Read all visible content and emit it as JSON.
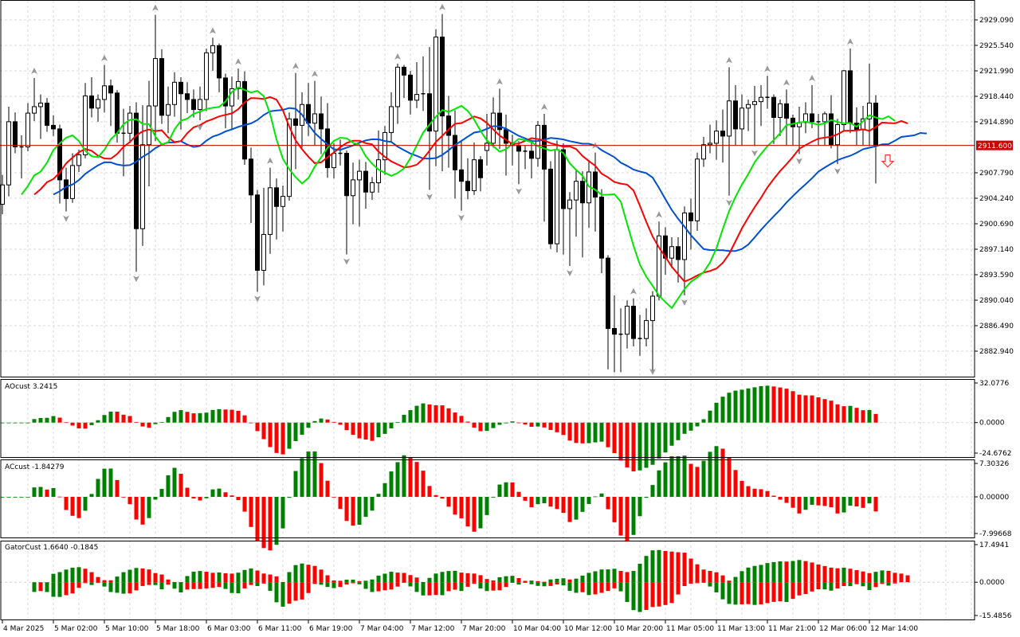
{
  "colors": {
    "background": "#ffffff",
    "grid": "#d9d9d9",
    "bull_body": "#ffffff",
    "bear_body": "#000000",
    "jaw": "#0050d0",
    "teeth": "#ff0000",
    "lips": "#00e600",
    "hist_up": "#008000",
    "hist_down": "#ff0000",
    "price_line": "#cc0000",
    "fractal": "#9a9a9a",
    "sell_arrow": "#ff3030"
  },
  "main": {
    "current_price": 2911.6,
    "current_price_label": "2911.600",
    "price_ticks": [
      "2929.090",
      "2925.540",
      "2921.990",
      "2918.440",
      "2914.890",
      "2907.790",
      "2904.240",
      "2900.690",
      "2897.140",
      "2893.590",
      "2890.040",
      "2886.490",
      "2882.940"
    ],
    "ylim": [
      2879.39,
      2931.86
    ],
    "alligator": {
      "jaw": {
        "period": 13,
        "shift": 8
      },
      "teeth": {
        "period": 8,
        "shift": 5
      },
      "lips": {
        "period": 5,
        "shift": 3
      }
    },
    "sell_signal_icon": "down-arrow-outline"
  },
  "time_axis": {
    "labels": [
      "4 Mar 2025",
      "5 Mar 02:00",
      "5 Mar 10:00",
      "5 Mar 18:00",
      "6 Mar 03:00",
      "6 Mar 11:00",
      "6 Mar 19:00",
      "7 Mar 04:00",
      "7 Mar 12:00",
      "7 Mar 20:00",
      "10 Mar 04:00",
      "10 Mar 12:00",
      "10 Mar 20:00",
      "11 Mar 05:00",
      "11 Mar 13:00",
      "11 Mar 21:00",
      "12 Mar 06:00",
      "12 Mar 14:00"
    ],
    "label_every_bars": 8
  },
  "ao": {
    "title": "AOcust 3.2415",
    "ticks": [
      "32.0776",
      "0.0000",
      "-24.6762"
    ],
    "ylim": [
      -24.6762,
      32.0776
    ]
  },
  "ac": {
    "title": "ACcust -1.84279",
    "ticks": [
      "7.30326",
      "0.00000",
      "-7.99668"
    ],
    "ylim": [
      -7.99668,
      7.30326
    ]
  },
  "gator": {
    "title": "GatorCust 1.6640 -0.1845",
    "ticks": [
      "17.4941",
      "0.0000",
      "-15.4856"
    ],
    "ylim": [
      -15.4856,
      17.4941
    ]
  },
  "chart_data": {
    "type": "candlestick",
    "timeframe_bars": "H1",
    "ohlc": [
      [
        2903.4,
        2907.5,
        2902.0,
        2906.1
      ],
      [
        2906.1,
        2917.0,
        2904.5,
        2914.9
      ],
      [
        2914.9,
        2916.2,
        2910.5,
        2911.4
      ],
      [
        2911.4,
        2913.0,
        2907.0,
        2911.4
      ],
      [
        2911.4,
        2917.5,
        2910.8,
        2916.1
      ],
      [
        2916.1,
        2921.0,
        2915.0,
        2917.0
      ],
      [
        2917.0,
        2918.7,
        2912.5,
        2917.5
      ],
      [
        2917.5,
        2918.2,
        2913.5,
        2914.4
      ],
      [
        2914.4,
        2915.8,
        2912.9,
        2913.9
      ],
      [
        2913.9,
        2914.5,
        2903.5,
        2906.8
      ],
      [
        2906.8,
        2908.5,
        2902.4,
        2904.2
      ],
      [
        2904.2,
        2910.5,
        2903.6,
        2908.8
      ],
      [
        2908.8,
        2911.0,
        2907.9,
        2910.3
      ],
      [
        2910.3,
        2920.3,
        2909.8,
        2918.5
      ],
      [
        2918.5,
        2921.1,
        2915.5,
        2916.8
      ],
      [
        2916.8,
        2918.7,
        2914.9,
        2918.0
      ],
      [
        2918.0,
        2922.8,
        2916.2,
        2919.9
      ],
      [
        2919.9,
        2920.8,
        2914.3,
        2918.9
      ],
      [
        2918.9,
        2919.3,
        2912.0,
        2913.3
      ],
      [
        2913.3,
        2916.7,
        2907.3,
        2913.3
      ],
      [
        2913.3,
        2917.1,
        2911.9,
        2916.1
      ],
      [
        2916.1,
        2917.6,
        2894.0,
        2900.0
      ],
      [
        2900.0,
        2917.2,
        2897.6,
        2911.7
      ],
      [
        2911.7,
        2920.6,
        2905.9,
        2917.1
      ],
      [
        2917.1,
        2929.8,
        2912.2,
        2923.7
      ],
      [
        2923.7,
        2925.0,
        2914.6,
        2915.8
      ],
      [
        2915.8,
        2919.8,
        2913.3,
        2917.3
      ],
      [
        2917.3,
        2921.8,
        2915.6,
        2920.4
      ],
      [
        2920.4,
        2921.1,
        2913.8,
        2918.8
      ],
      [
        2918.8,
        2920.4,
        2916.1,
        2918.0
      ],
      [
        2918.0,
        2919.4,
        2915.5,
        2916.6
      ],
      [
        2916.6,
        2919.8,
        2915.1,
        2918.0
      ],
      [
        2918.0,
        2925.1,
        2916.4,
        2924.5
      ],
      [
        2924.5,
        2926.6,
        2922.0,
        2925.5
      ],
      [
        2925.5,
        2925.8,
        2919.0,
        2921.0
      ],
      [
        2921.0,
        2921.6,
        2914.0,
        2917.1
      ],
      [
        2917.1,
        2921.2,
        2913.9,
        2919.5
      ],
      [
        2919.5,
        2922.3,
        2918.0,
        2920.5
      ],
      [
        2920.5,
        2921.9,
        2908.9,
        2909.7
      ],
      [
        2909.7,
        2911.3,
        2900.8,
        2904.7
      ],
      [
        2904.7,
        2905.4,
        2891.2,
        2894.2
      ],
      [
        2894.2,
        2905.7,
        2892.1,
        2899.2
      ],
      [
        2899.2,
        2908.5,
        2896.5,
        2905.7
      ],
      [
        2905.7,
        2907.0,
        2898.5,
        2903.1
      ],
      [
        2903.1,
        2906.0,
        2899.6,
        2904.5
      ],
      [
        2904.5,
        2916.2,
        2903.9,
        2915.3
      ],
      [
        2915.3,
        2921.7,
        2908.3,
        2914.4
      ],
      [
        2914.4,
        2919.0,
        2911.3,
        2917.3
      ],
      [
        2917.3,
        2920.3,
        2912.9,
        2914.7
      ],
      [
        2914.7,
        2920.6,
        2911.6,
        2916.0
      ],
      [
        2916.0,
        2918.4,
        2910.4,
        2913.9
      ],
      [
        2913.9,
        2917.5,
        2907.1,
        2908.5
      ],
      [
        2908.5,
        2911.9,
        2907.0,
        2910.5
      ],
      [
        2910.5,
        2912.4,
        2908.8,
        2910.5
      ],
      [
        2910.5,
        2910.9,
        2896.4,
        2904.6
      ],
      [
        2904.6,
        2909.2,
        2900.6,
        2906.8
      ],
      [
        2906.8,
        2909.6,
        2900.3,
        2908.0
      ],
      [
        2908.0,
        2909.3,
        2902.8,
        2905.1
      ],
      [
        2905.1,
        2907.2,
        2904.0,
        2906.4
      ],
      [
        2906.4,
        2913.7,
        2905.0,
        2909.6
      ],
      [
        2909.6,
        2914.3,
        2907.5,
        2913.4
      ],
      [
        2913.4,
        2919.0,
        2912.0,
        2917.0
      ],
      [
        2917.0,
        2923.0,
        2914.6,
        2922.5
      ],
      [
        2922.5,
        2922.8,
        2918.2,
        2921.4
      ],
      [
        2921.4,
        2922.0,
        2915.9,
        2917.9
      ],
      [
        2917.9,
        2923.2,
        2916.8,
        2918.7
      ],
      [
        2918.7,
        2924.0,
        2916.4,
        2918.8
      ],
      [
        2918.8,
        2925.3,
        2905.4,
        2913.6
      ],
      [
        2913.6,
        2927.8,
        2908.7,
        2926.7
      ],
      [
        2926.7,
        2929.9,
        2908.0,
        2915.7
      ],
      [
        2915.7,
        2918.5,
        2908.5,
        2913.0
      ],
      [
        2913.0,
        2916.5,
        2904.2,
        2908.2
      ],
      [
        2908.2,
        2912.3,
        2902.5,
        2906.6
      ],
      [
        2906.6,
        2909.8,
        2904.1,
        2905.3
      ],
      [
        2905.3,
        2912.0,
        2904.7,
        2909.6
      ],
      [
        2909.6,
        2910.1,
        2905.2,
        2907.1
      ],
      [
        2910.9,
        2916.0,
        2908.8,
        2911.9
      ],
      [
        2911.9,
        2918.3,
        2911.3,
        2916.1
      ],
      [
        2916.1,
        2919.5,
        2911.1,
        2913.8
      ],
      [
        2913.8,
        2915.9,
        2907.4,
        2911.9
      ],
      [
        2911.9,
        2913.1,
        2908.8,
        2911.6
      ],
      [
        2911.6,
        2912.2,
        2906.2,
        2910.8
      ],
      [
        2910.8,
        2911.6,
        2908.3,
        2910.8
      ],
      [
        2910.8,
        2912.4,
        2907.0,
        2909.8
      ],
      [
        2909.8,
        2915.0,
        2908.6,
        2914.4
      ],
      [
        2914.4,
        2916.0,
        2901.0,
        2908.3
      ],
      [
        2908.3,
        2909.4,
        2897.2,
        2897.9
      ],
      [
        2897.9,
        2912.3,
        2896.7,
        2911.0
      ],
      [
        2911.0,
        2911.9,
        2896.4,
        2902.8
      ],
      [
        2902.8,
        2905.1,
        2894.8,
        2904.0
      ],
      [
        2904.0,
        2908.1,
        2898.9,
        2906.6
      ],
      [
        2906.6,
        2908.0,
        2896.0,
        2903.6
      ],
      [
        2903.6,
        2909.4,
        2900.1,
        2907.9
      ],
      [
        2907.9,
        2910.6,
        2899.6,
        2904.4
      ],
      [
        2904.4,
        2905.5,
        2893.8,
        2895.9
      ],
      [
        2895.9,
        2896.3,
        2880.4,
        2886.1
      ],
      [
        2886.1,
        2890.7,
        2880.0,
        2885.3
      ],
      [
        2885.3,
        2888.9,
        2880.0,
        2885.3
      ],
      [
        2885.3,
        2890.0,
        2883.3,
        2889.2
      ],
      [
        2889.2,
        2890.3,
        2883.6,
        2884.7
      ],
      [
        2884.7,
        2888.0,
        2882.3,
        2884.7
      ],
      [
        2884.7,
        2888.9,
        2883.6,
        2887.2
      ],
      [
        2887.2,
        2891.3,
        2880.0,
        2890.6
      ],
      [
        2890.6,
        2901.0,
        2890.0,
        2899.0
      ],
      [
        2899.0,
        2900.2,
        2893.6,
        2895.9
      ],
      [
        2895.9,
        2898.8,
        2894.5,
        2897.5
      ],
      [
        2897.5,
        2898.8,
        2892.5,
        2895.7
      ],
      [
        2895.7,
        2903.1,
        2890.7,
        2902.2
      ],
      [
        2902.2,
        2904.2,
        2897.1,
        2901.1
      ],
      [
        2901.1,
        2910.6,
        2899.7,
        2909.7
      ],
      [
        2909.7,
        2912.8,
        2908.6,
        2911.7
      ],
      [
        2911.7,
        2914.5,
        2910.5,
        2911.9
      ],
      [
        2911.9,
        2915.1,
        2909.6,
        2913.6
      ],
      [
        2913.6,
        2916.6,
        2909.2,
        2912.9
      ],
      [
        2912.9,
        2922.5,
        2904.6,
        2917.8
      ],
      [
        2917.8,
        2920.0,
        2911.6,
        2913.9
      ],
      [
        2913.9,
        2918.7,
        2911.6,
        2916.8
      ],
      [
        2916.8,
        2918.0,
        2913.6,
        2917.3
      ],
      [
        2917.3,
        2919.9,
        2911.5,
        2917.7
      ],
      [
        2917.7,
        2920.0,
        2914.3,
        2918.3
      ],
      [
        2918.3,
        2921.3,
        2916.7,
        2918.3
      ],
      [
        2918.3,
        2918.7,
        2911.8,
        2915.5
      ],
      [
        2915.5,
        2918.0,
        2912.9,
        2917.4
      ],
      [
        2917.4,
        2919.4,
        2911.6,
        2915.4
      ],
      [
        2915.4,
        2915.9,
        2911.6,
        2914.2
      ],
      [
        2914.2,
        2917.0,
        2910.4,
        2914.8
      ],
      [
        2914.8,
        2917.6,
        2913.3,
        2916.0
      ],
      [
        2916.0,
        2920.0,
        2914.0,
        2914.9
      ],
      [
        2914.9,
        2916.0,
        2911.6,
        2914.9
      ],
      [
        2914.9,
        2916.3,
        2911.6,
        2916.0
      ],
      [
        2916.0,
        2918.6,
        2911.2,
        2911.7
      ],
      [
        2911.7,
        2915.3,
        2909.0,
        2914.5
      ],
      [
        2914.5,
        2922.1,
        2913.7,
        2922.0
      ],
      [
        2922.0,
        2925.1,
        2913.3,
        2914.7
      ],
      [
        2914.7,
        2916.9,
        2911.6,
        2913.8
      ],
      [
        2913.8,
        2917.1,
        2911.6,
        2915.3
      ],
      [
        2915.3,
        2923.0,
        2911.5,
        2917.5
      ],
      [
        2917.5,
        2918.6,
        2906.3,
        2911.6
      ]
    ]
  }
}
